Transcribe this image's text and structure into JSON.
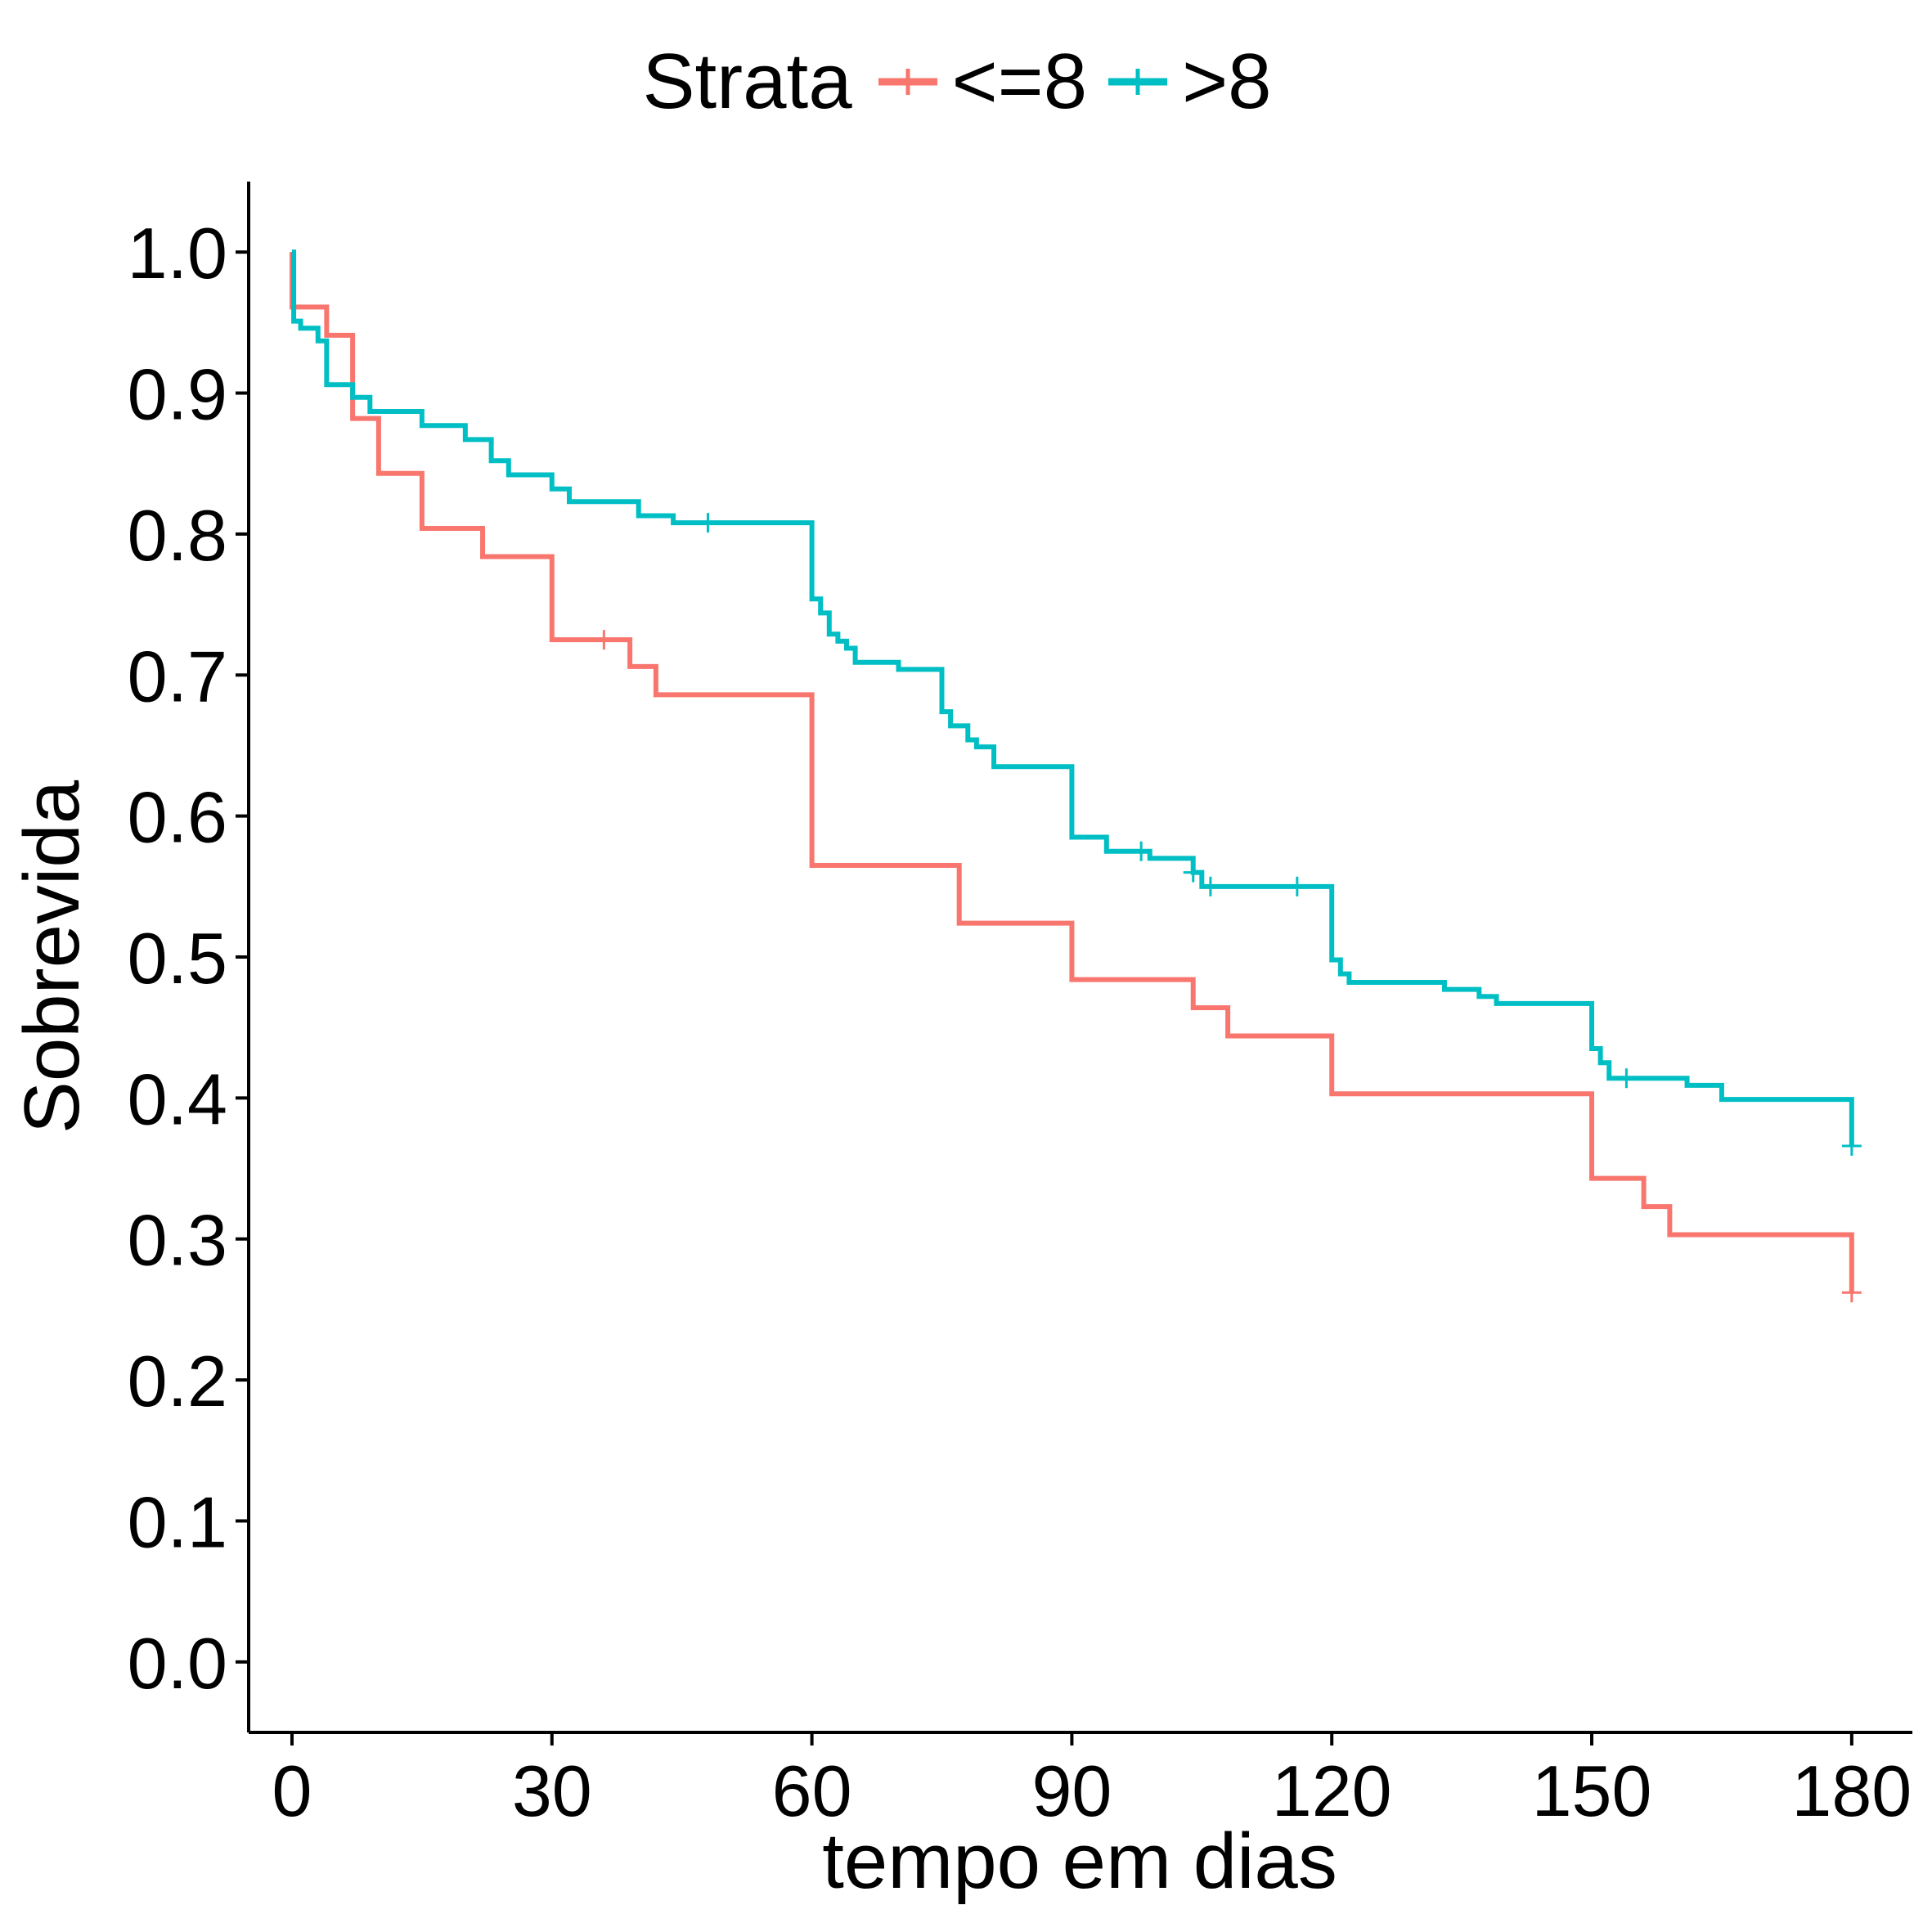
{
  "chart_data": {
    "type": "line",
    "step": true,
    "legend": {
      "title": "Strata",
      "placement": "top"
    },
    "xlabel": "tempo em dias",
    "ylabel": "Sobrevida",
    "xlim": [
      -5,
      187
    ],
    "ylim": [
      -0.05,
      1.05
    ],
    "x_ticks": [
      0,
      30,
      60,
      90,
      120,
      150,
      180
    ],
    "x_tick_labels": [
      "0",
      "30",
      "60",
      "90",
      "120",
      "150",
      "180"
    ],
    "y_ticks": [
      0,
      0.1,
      0.2,
      0.3,
      0.4,
      0.5,
      0.6,
      0.7,
      0.8,
      0.9,
      1.0
    ],
    "y_tick_labels": [
      "0.0",
      "0.1",
      "0.2",
      "0.3",
      "0.4",
      "0.5",
      "0.6",
      "0.7",
      "0.8",
      "0.9",
      "1.0"
    ],
    "grid": false,
    "series": [
      {
        "name": "<=8",
        "color": "#F8766D",
        "steps": [
          [
            0,
            0.961
          ],
          [
            4,
            0.941
          ],
          [
            7,
            0.882
          ],
          [
            10,
            0.843
          ],
          [
            15,
            0.804
          ],
          [
            22,
            0.784
          ],
          [
            30,
            0.725
          ],
          [
            39,
            0.706
          ],
          [
            42,
            0.686
          ],
          [
            60,
            0.565
          ],
          [
            77,
            0.524
          ],
          [
            90,
            0.484
          ],
          [
            104,
            0.464
          ],
          [
            108,
            0.444
          ],
          [
            120,
            0.403
          ],
          [
            150,
            0.343
          ],
          [
            156,
            0.323
          ],
          [
            159,
            0.303
          ],
          [
            180,
            0.262
          ]
        ],
        "censored": [
          [
            36,
            0.725
          ],
          [
            180,
            0.262
          ]
        ]
      },
      {
        "name": ">8",
        "color": "#00BFC4",
        "steps": [
          [
            0,
            1.0
          ],
          [
            0.2,
            0.951
          ],
          [
            1,
            0.946
          ],
          [
            3,
            0.937
          ],
          [
            4,
            0.906
          ],
          [
            7,
            0.897
          ],
          [
            9,
            0.887
          ],
          [
            15,
            0.877
          ],
          [
            20,
            0.867
          ],
          [
            23,
            0.852
          ],
          [
            25,
            0.842
          ],
          [
            30,
            0.832
          ],
          [
            32,
            0.823
          ],
          [
            40,
            0.813
          ],
          [
            44,
            0.808
          ],
          [
            60,
            0.754
          ],
          [
            61,
            0.744
          ],
          [
            62,
            0.729
          ],
          [
            63,
            0.724
          ],
          [
            64,
            0.719
          ],
          [
            65,
            0.709
          ],
          [
            70,
            0.704
          ],
          [
            75,
            0.674
          ],
          [
            76,
            0.664
          ],
          [
            78,
            0.654
          ],
          [
            79,
            0.649
          ],
          [
            81,
            0.635
          ],
          [
            90,
            0.585
          ],
          [
            94,
            0.575
          ],
          [
            99,
            0.57
          ],
          [
            104,
            0.56
          ],
          [
            105,
            0.55
          ],
          [
            120,
            0.498
          ],
          [
            121,
            0.488
          ],
          [
            122,
            0.482
          ],
          [
            133,
            0.477
          ],
          [
            137,
            0.472
          ],
          [
            139,
            0.467
          ],
          [
            150,
            0.435
          ],
          [
            151,
            0.425
          ],
          [
            152,
            0.414
          ],
          [
            161,
            0.409
          ],
          [
            165,
            0.399
          ],
          [
            180,
            0.366
          ]
        ],
        "censored": [
          [
            48,
            0.808
          ],
          [
            98,
            0.575
          ],
          [
            104,
            0.56
          ],
          [
            106,
            0.55
          ],
          [
            116,
            0.55
          ],
          [
            154,
            0.414
          ],
          [
            180,
            0.366
          ]
        ]
      }
    ]
  }
}
